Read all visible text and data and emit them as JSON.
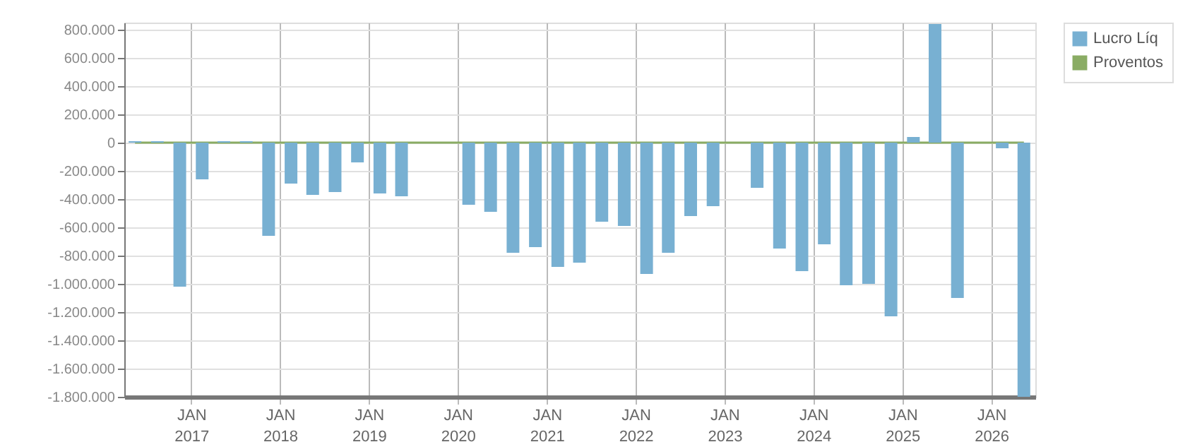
{
  "chart_data": {
    "type": "bar",
    "x": [
      "2016-05-15",
      "2016-08-15",
      "2016-11-15",
      "2017-02-15",
      "2017-05-15",
      "2017-08-15",
      "2017-11-15",
      "2018-02-15",
      "2018-05-15",
      "2018-08-15",
      "2018-11-15",
      "2019-02-15",
      "2019-05-15",
      "2019-08-15",
      "2019-11-15",
      "2020-02-15",
      "2020-05-15",
      "2020-08-15",
      "2020-11-15",
      "2021-02-15",
      "2021-05-15",
      "2021-08-15",
      "2021-11-15",
      "2022-02-15",
      "2022-05-15",
      "2022-08-15",
      "2022-11-15",
      "2023-02-15",
      "2023-05-15",
      "2023-08-15",
      "2023-11-15",
      "2024-02-15",
      "2024-05-15",
      "2024-08-15",
      "2024-11-15",
      "2025-02-15",
      "2025-05-15",
      "2025-08-15",
      "2025-11-15",
      "2026-02-15",
      "2026-05-15"
    ],
    "series": [
      {
        "name": "Lucro Líq",
        "color": "#78b0d2",
        "values": [
          10000,
          10000,
          -1020000,
          -260000,
          10000,
          10000,
          -660000,
          -290000,
          -370000,
          -350000,
          -140000,
          -360000,
          -380000,
          null,
          null,
          -440000,
          -490000,
          -780000,
          -740000,
          -880000,
          -850000,
          -560000,
          -590000,
          -930000,
          -780000,
          -520000,
          -450000,
          null,
          -320000,
          -750000,
          -910000,
          -720000,
          -1010000,
          -1000000,
          -1230000,
          40000,
          840000,
          -1100000,
          null,
          -40000,
          -1800000
        ]
      },
      {
        "name": "Proventos",
        "type": "line",
        "color": "#8aac64",
        "values": [
          0,
          0,
          0,
          0,
          0,
          0,
          0,
          0,
          0,
          0,
          0,
          0,
          0,
          0,
          0,
          0,
          0,
          0,
          0,
          0,
          0,
          0,
          0,
          0,
          0,
          0,
          0,
          0,
          0,
          0,
          0,
          0,
          0,
          0,
          0,
          0,
          0,
          0,
          0,
          0,
          0
        ]
      }
    ],
    "xlim": [
      "2016-04-01",
      "2026-07-01"
    ],
    "xticks": [
      {
        "value": "2017-01-01",
        "label": "JAN 2017"
      },
      {
        "value": "2018-01-01",
        "label": "JAN 2018"
      },
      {
        "value": "2019-01-01",
        "label": "JAN 2019"
      },
      {
        "value": "2020-01-01",
        "label": "JAN 2020"
      },
      {
        "value": "2021-01-01",
        "label": "JAN 2021"
      },
      {
        "value": "2022-01-01",
        "label": "JAN 2022"
      },
      {
        "value": "2023-01-01",
        "label": "JAN 2023"
      },
      {
        "value": "2024-01-01",
        "label": "JAN 2024"
      },
      {
        "value": "2025-01-01",
        "label": "JAN 2025"
      },
      {
        "value": "2026-01-01",
        "label": "JAN 2026"
      }
    ],
    "ylim": [
      -1800000,
      850000
    ],
    "yticks": [
      {
        "value": 800000,
        "label": "800.000"
      },
      {
        "value": 600000,
        "label": "600.000"
      },
      {
        "value": 400000,
        "label": "400.000"
      },
      {
        "value": 200000,
        "label": "200.000"
      },
      0,
      {
        "value": -200000,
        "label": "-200.000"
      },
      {
        "value": -400000,
        "label": "-400.000"
      },
      {
        "value": -600000,
        "label": "-600.000"
      },
      {
        "value": -800000,
        "label": "-800.000"
      },
      {
        "value": -1000000,
        "label": "-1.000.000"
      },
      {
        "value": -1200000,
        "label": "-1.200.000"
      },
      {
        "value": -1400000,
        "label": "-1.400.000"
      },
      {
        "value": -1600000,
        "label": "-1.600.000"
      },
      {
        "value": -1800000,
        "label": "-1.800.000"
      }
    ],
    "grid": true,
    "legend": "top right"
  }
}
